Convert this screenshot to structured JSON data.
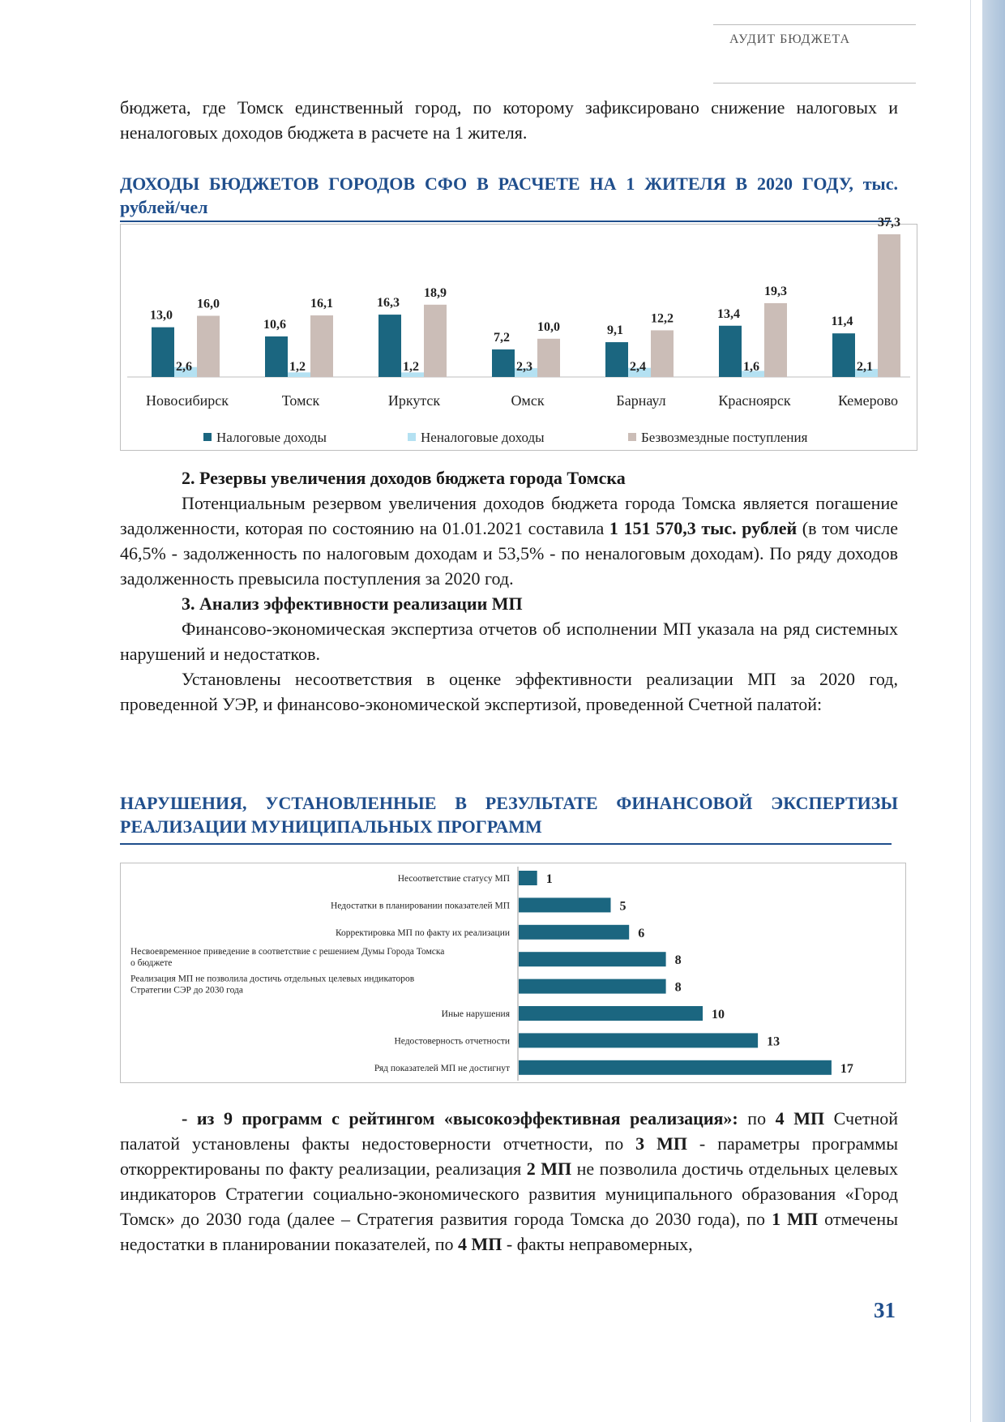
{
  "header": {
    "title": "АУДИТ БЮДЖЕТА"
  },
  "intro_text": "бюджета, где Томск единственный город, по которому зафиксировано снижение налоговых и неналоговых доходов бюджета в расчете на 1 жителя.",
  "chart1_title": "ДОХОДЫ БЮДЖЕТОВ ГОРОДОВ СФО В РАСЧЕТЕ НА 1 ЖИТЕЛЯ В 2020 ГОДУ, тыс. рублей/чел",
  "chart2_title": "НАРУШЕНИЯ, УСТАНОВЛЕННЫЕ В РЕЗУЛЬТАТЕ ФИНАНСОВОЙ ЭКСПЕРТИЗЫ РЕАЛИЗАЦИИ МУНИЦИПАЛЬНЫХ ПРОГРАММ",
  "chart_data": [
    {
      "type": "bar",
      "categories": [
        "Новосибирск",
        "Томск",
        "Иркутск",
        "Омск",
        "Барнаул",
        "Красноярск",
        "Кемерово"
      ],
      "series": [
        {
          "name": "Налоговые доходы",
          "color": "#1b6680",
          "values": [
            13.0,
            10.6,
            16.3,
            7.2,
            9.1,
            13.4,
            11.4
          ],
          "labels": [
            "13,0",
            "10,6",
            "16,3",
            "7,2",
            "9,1",
            "13,4",
            "11,4"
          ]
        },
        {
          "name": "Неналоговые доходы",
          "color": "#b4e1f2",
          "values": [
            2.6,
            1.2,
            1.2,
            2.3,
            2.4,
            1.6,
            2.1
          ],
          "labels": [
            "2,6",
            "1,2",
            "1,2",
            "2,3",
            "2,4",
            "1,6",
            "2,1"
          ]
        },
        {
          "name": "Безвозмездные поступления",
          "color": "#cbbdb7",
          "values": [
            16.0,
            16.1,
            18.9,
            10.0,
            12.2,
            19.3,
            37.3
          ],
          "labels": [
            "16,0",
            "16,1",
            "18,9",
            "10,0",
            "12,2",
            "19,3",
            "37,3"
          ]
        }
      ],
      "ylim": [
        0,
        37.3
      ],
      "legend": "bottom",
      "grid": false
    },
    {
      "type": "bar",
      "orientation": "horizontal",
      "color": "#1b6680",
      "categories": [
        "Несоответствие статусу МП",
        "Недостатки в планировании показателей МП",
        "Корректировка МП по факту их реализации",
        "Несвоевременное приведение  в соответствие с решением Думы Города Томска о бюджете",
        "Реализация МП не позволила достичь отдельных целевых индикаторов Стратегии СЭР до 2030 года",
        "Иные нарушения",
        "Недостоверность отчетности",
        "Ряд показателей МП не достигнут"
      ],
      "category_lines": [
        [
          "Несоответствие статусу МП"
        ],
        [
          "Недостатки в планировании показателей МП"
        ],
        [
          "Корректировка МП по факту их реализации"
        ],
        [
          "Несвоевременное приведение  в соответствие с решением Думы Города Томска",
          "о бюджете"
        ],
        [
          "Реализация МП не позволила достичь отдельных целевых индикаторов",
          "Стратегии СЭР до 2030 года"
        ],
        [
          "Иные нарушения"
        ],
        [
          "Недостоверность отчетности"
        ],
        [
          "Ряд показателей МП не достигнут"
        ]
      ],
      "values": [
        1,
        5,
        6,
        8,
        8,
        10,
        13,
        17
      ]
    }
  ],
  "section2": {
    "heading": "2. Резервы увеличения доходов бюджета города Томска",
    "p1": "Потенциальным резервом увеличения доходов бюджета города Томска является погашение задолженности, которая по состоянию на 01.01.2021 составила ",
    "p1_bold": "1 151 570,3 тыс. рублей",
    "p1_rest": " (в том числе 46,5% - задолженность по налоговым доходам и 53,5% - по неналоговым доходам).  По ряду доходов задолженность превысила поступления за 2020 год."
  },
  "section3": {
    "heading": "3. Анализ эффективности реализации МП",
    "p1": "Финансово-экономическая экспертиза отчетов об исполнении МП указала на ряд системных нарушений и недостатков.",
    "p2": "Установлены несоответствия в оценке эффективности реализации МП за 2020 год, проведенной УЭР, и финансово-экономической экспертизой, проведенной Счетной палатой:"
  },
  "bottom": {
    "lead_bold": "- из 9 программ с рейтингом «высокоэффективная реализация»:",
    "t1": " по ",
    "b1": "4 МП",
    "t2": " Счетной палатой установлены факты недостоверности отчетности, по ",
    "b2": "3 МП",
    "t3": " - параметры программы откорректированы по факту реализации, реализация ",
    "b3": "2 МП",
    "t4": " не позволила достичь отдельных целевых индикаторов Стратегии социально-экономического развития муниципального образования «Город Томск» до 2030 года (далее – Стратегия развития города Томска до 2030 года), по ",
    "b4": "1 МП",
    "t5": " отмечены недостатки в планировании показателей, по ",
    "b5": "4 МП",
    "t6": " - факты неправомерных,"
  },
  "page_number": "31"
}
